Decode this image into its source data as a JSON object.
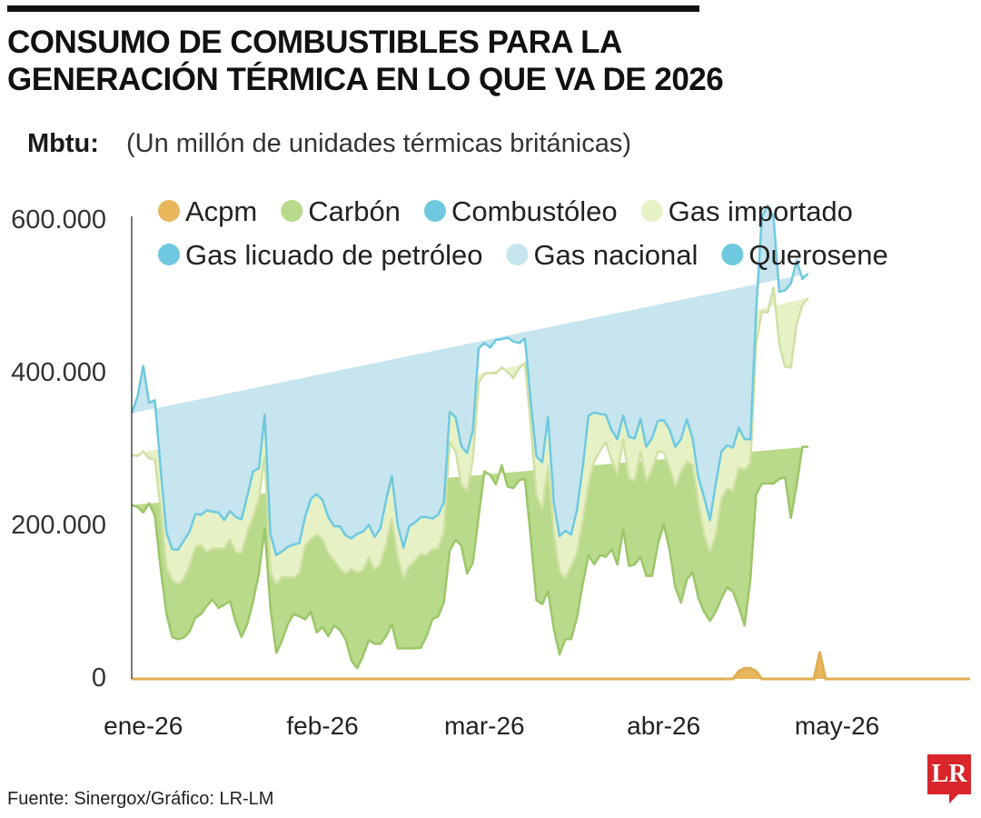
{
  "header": {
    "title_line1": "CONSUMO DE COMBUSTIBLES PARA LA",
    "title_line2": "GENERACIÓN TÉRMICA EN LO QUE VA DE 2026",
    "unit_label": "Mbtu:",
    "unit_desc": "(Un millón de unidades térmicas británicas)"
  },
  "footer": {
    "source": "Fuente: Sinergox/Gráfico: LR-LM",
    "logo_text": "LR"
  },
  "chart_data": {
    "type": "area",
    "stacked": true,
    "ylim": [
      0,
      600000
    ],
    "y_ticks": [
      0,
      200000,
      400000,
      600000
    ],
    "y_tick_labels": [
      "0",
      "200.000",
      "400.000",
      "600.000"
    ],
    "x_ticks": [
      {
        "day": 2,
        "label": "ene-26"
      },
      {
        "day": 33,
        "label": "feb-26"
      },
      {
        "day": 61,
        "label": "mar-26"
      },
      {
        "day": 92,
        "label": "abr-26"
      },
      {
        "day": 122,
        "label": "may-26"
      }
    ],
    "legend_position": "top",
    "series": [
      {
        "name": "Acpm",
        "color": "#e8b75c",
        "stroke": "#e0ad52",
        "values": [
          0,
          0,
          0,
          0,
          0,
          0,
          0,
          0,
          0,
          0,
          0,
          0,
          0,
          0,
          0,
          0,
          0,
          0,
          0,
          0,
          0,
          0,
          0,
          0,
          0,
          0,
          0,
          0,
          0,
          0,
          0,
          0,
          0,
          0,
          0,
          0,
          0,
          0,
          0,
          0,
          0,
          0,
          0,
          0,
          0,
          0,
          0,
          0,
          0,
          0,
          0,
          0,
          0,
          0,
          0,
          0,
          0,
          0,
          0,
          0,
          0,
          0,
          0,
          0,
          0,
          0,
          0,
          0,
          0,
          0,
          0,
          0,
          0,
          0,
          0,
          0,
          0,
          0,
          0,
          0,
          0,
          0,
          0,
          0,
          0,
          0,
          0,
          0,
          0,
          0,
          0,
          0,
          0,
          0,
          0,
          0,
          0,
          0,
          0,
          0,
          0,
          0,
          0,
          0,
          0,
          10000,
          14000,
          14000,
          10000,
          0,
          0,
          0,
          0,
          0,
          0,
          0,
          0,
          0,
          0,
          35000,
          0,
          0,
          0,
          0,
          0,
          0,
          0,
          0,
          0,
          0,
          0,
          0,
          0,
          0,
          0,
          0,
          0,
          0,
          0,
          0,
          0,
          0,
          0,
          0,
          0,
          0
        ]
      },
      {
        "name": "Carbón",
        "color": "#b9d98b",
        "stroke": "#9cc669",
        "values": [
          228000,
          225000,
          218000,
          230000,
          214000,
          145000,
          86000,
          55000,
          52000,
          54000,
          62000,
          80000,
          85000,
          96000,
          104000,
          93000,
          97000,
          102000,
          74000,
          55000,
          72000,
          102000,
          138000,
          197000,
          92000,
          34000,
          50000,
          72000,
          85000,
          82000,
          78000,
          88000,
          61000,
          68000,
          56000,
          70000,
          64000,
          52000,
          24000,
          14000,
          30000,
          51000,
          46000,
          46000,
          56000,
          72000,
          40000,
          40000,
          40000,
          40000,
          41000,
          56000,
          78000,
          82000,
          100000,
          168000,
          182000,
          175000,
          138000,
          152000,
          212000,
          272000,
          267000,
          255000,
          280000,
          252000,
          250000,
          260000,
          262000,
          186000,
          103000,
          98000,
          115000,
          66000,
          32000,
          52000,
          52000,
          80000,
          124000,
          162000,
          150000,
          162000,
          160000,
          170000,
          150000,
          196000,
          148000,
          150000,
          160000,
          135000,
          135000,
          176000,
          203000,
          170000,
          120000,
          100000,
          130000,
          140000,
          106000,
          88000,
          76000,
          88000,
          106000,
          120000,
          114000,
          84000,
          56000,
          116000,
          232000,
          256000,
          256000,
          256000,
          262000,
          264000,
          211000,
          254000,
          304000,
          304000
        ]
      },
      {
        "name": "Gas importado",
        "color": "#e7f1c6",
        "stroke": "#cfe1a3",
        "values": [
          65000,
          67000,
          80000,
          59000,
          73000,
          78000,
          60000,
          75000,
          72000,
          77000,
          86000,
          93000,
          90000,
          70000,
          67000,
          78000,
          74000,
          81000,
          92000,
          110000,
          120000,
          111000,
          98000,
          94000,
          48000,
          90000,
          84000,
          61000,
          48000,
          56000,
          97000,
          95000,
          128000,
          115000,
          109000,
          85000,
          81000,
          86000,
          120000,
          125000,
          113000,
          108000,
          97000,
          104000,
          120000,
          138000,
          119000,
          92000,
          108000,
          115000,
          123000,
          106000,
          92000,
          89000,
          92000,
          142000,
          116000,
          80000,
          108000,
          135000,
          176000,
          128000,
          134000,
          145000,
          128000,
          150000,
          144000,
          147000,
          152000,
          149000,
          138000,
          124000,
          164000,
          125000,
          108000,
          80000,
          95000,
          85000,
          83000,
          93000,
          135000,
          137000,
          150000,
          117000,
          118000,
          118000,
          114000,
          110000,
          138000,
          124000,
          140000,
          122000,
          94000,
          107000,
          132000,
          171000,
          155000,
          140000,
          125000,
          100000,
          90000,
          100000,
          130000,
          130000,
          132000,
          183000,
          204000,
          152000,
          198000,
          225000,
          224000,
          257000,
          177000,
          145000,
          197000,
          210000,
          186000,
          195000
        ]
      },
      {
        "name": "Combustóleo",
        "color": "#b7dfe9",
        "stroke": "#6ec9e0",
        "values": [
          0,
          0,
          0,
          0,
          0,
          0,
          0,
          0,
          0,
          0,
          0,
          0,
          0,
          0,
          0,
          0,
          0,
          0,
          0,
          0,
          0,
          0,
          0,
          0,
          0,
          0,
          0,
          0,
          0,
          0,
          0,
          0,
          0,
          0,
          0,
          0,
          0,
          0,
          0,
          0,
          0,
          0,
          0,
          0,
          0,
          0,
          0,
          0,
          0,
          0,
          0,
          0,
          0,
          0,
          0,
          0,
          0,
          0,
          0,
          0,
          0,
          0,
          0,
          0,
          0,
          0,
          0,
          0,
          0,
          0,
          0,
          0,
          0,
          0,
          0,
          0,
          0,
          0,
          0,
          0,
          0,
          0,
          0,
          0,
          0,
          0,
          0,
          0,
          0,
          0,
          0,
          0,
          0,
          0,
          0,
          0,
          0,
          0,
          0,
          0,
          0,
          0,
          0,
          0,
          0,
          0,
          0,
          0,
          0,
          0,
          0,
          0,
          0,
          0,
          0,
          0,
          0,
          0,
          0,
          0
        ]
      },
      {
        "name": "Gas licuado de petróleo",
        "color": "#b7dfe9",
        "stroke": "#6ec9e0",
        "values": [
          0,
          0,
          0,
          0,
          0,
          0,
          0,
          0,
          0,
          0,
          0,
          0,
          0,
          0,
          0,
          0,
          0,
          0,
          0,
          0,
          0,
          0,
          0,
          0,
          0,
          0,
          0,
          0,
          0,
          0,
          0,
          0,
          0,
          0,
          0,
          0,
          0,
          0,
          0,
          0,
          0,
          0,
          0,
          0,
          0,
          0,
          0,
          0,
          0,
          0,
          0,
          0,
          0,
          0,
          0,
          0,
          0,
          0,
          0,
          0,
          0,
          0,
          0,
          0,
          0,
          0,
          0,
          0,
          0,
          0,
          0,
          0,
          0,
          0,
          0,
          0,
          0,
          0,
          0,
          0,
          0,
          0,
          0,
          0,
          0,
          0,
          0,
          0,
          0,
          0,
          0,
          0,
          0,
          0,
          0,
          0,
          0,
          0,
          0,
          0,
          0,
          0,
          0,
          0,
          0,
          0,
          0,
          0,
          0,
          0,
          0,
          0,
          0,
          0,
          0,
          0,
          0,
          0,
          0,
          0
        ]
      },
      {
        "name": "Gas nacional",
        "color": "#c6e5ee",
        "stroke": "#6ec9e0",
        "values": [
          55000,
          78000,
          112000,
          73000,
          78000,
          53000,
          46000,
          40000,
          45000,
          50000,
          45000,
          43000,
          40000,
          55000,
          48000,
          47000,
          37000,
          37000,
          46000,
          44000,
          48000,
          59000,
          40000,
          55000,
          50000,
          38000,
          33000,
          40000,
          43000,
          40000,
          38000,
          53000,
          53000,
          51000,
          47000,
          45000,
          55000,
          50000,
          40000,
          51000,
          50000,
          43000,
          43000,
          47000,
          58000,
          56000,
          43000,
          40000,
          52000,
          50000,
          48000,
          50000,
          40000,
          44000,
          40000,
          40000,
          45000,
          50000,
          50000,
          39000,
          45000,
          40000,
          33000,
          44000,
          37000,
          45000,
          48000,
          33000,
          32000,
          30000,
          50000,
          62000,
          64000,
          40000,
          47000,
          62000,
          42000,
          56000,
          70000,
          90000,
          64000,
          48000,
          36000,
          39000,
          46000,
          31000,
          55000,
          55000,
          43000,
          45000,
          41000,
          40000,
          42000,
          50000,
          52000,
          43000,
          55000,
          35000,
          33000,
          50000,
          42000,
          67000,
          62000,
          56000,
          57000,
          52000,
          40000,
          32000,
          43000,
          125000,
          140000,
          92000,
          68000,
          100000,
          110000,
          84000,
          34000,
          32000
        ]
      },
      {
        "name": "Querosene",
        "color": "#b7dfe9",
        "stroke": "#6ec9e0",
        "values": [
          0,
          0,
          0,
          0,
          0,
          0,
          0,
          0,
          0,
          0,
          0,
          0,
          0,
          0,
          0,
          0,
          0,
          0,
          0,
          0,
          0,
          0,
          0,
          0,
          0,
          0,
          0,
          0,
          0,
          0,
          0,
          0,
          0,
          0,
          0,
          0,
          0,
          0,
          0,
          0,
          0,
          0,
          0,
          0,
          0,
          0,
          0,
          0,
          0,
          0,
          0,
          0,
          0,
          0,
          0,
          0,
          0,
          0,
          0,
          0,
          0,
          0,
          0,
          0,
          0,
          0,
          0,
          0,
          0,
          0,
          0,
          0,
          0,
          0,
          0,
          0,
          0,
          0,
          0,
          0,
          0,
          0,
          0,
          0,
          0,
          0,
          0,
          0,
          0,
          0,
          0,
          0,
          0,
          0,
          0,
          0,
          0,
          0,
          0,
          0,
          0,
          0,
          0,
          0,
          0,
          0,
          0,
          0,
          0,
          0,
          0,
          0,
          0,
          0,
          0,
          0,
          0,
          0,
          0,
          0
        ]
      }
    ],
    "legend": [
      {
        "label": "Acpm",
        "color": "#e8b75c"
      },
      {
        "label": "Carbón",
        "color": "#b9d98b"
      },
      {
        "label": "Combustóleo",
        "color": "#6ec9e0"
      },
      {
        "label": "Gas importado",
        "color": "#e7f1c6"
      },
      {
        "label": "Gas licuado de petróleo",
        "color": "#6ec9e0"
      },
      {
        "label": "Gas nacional",
        "color": "#c6e5ee"
      },
      {
        "label": "Querosene",
        "color": "#6ec9e0"
      }
    ]
  }
}
